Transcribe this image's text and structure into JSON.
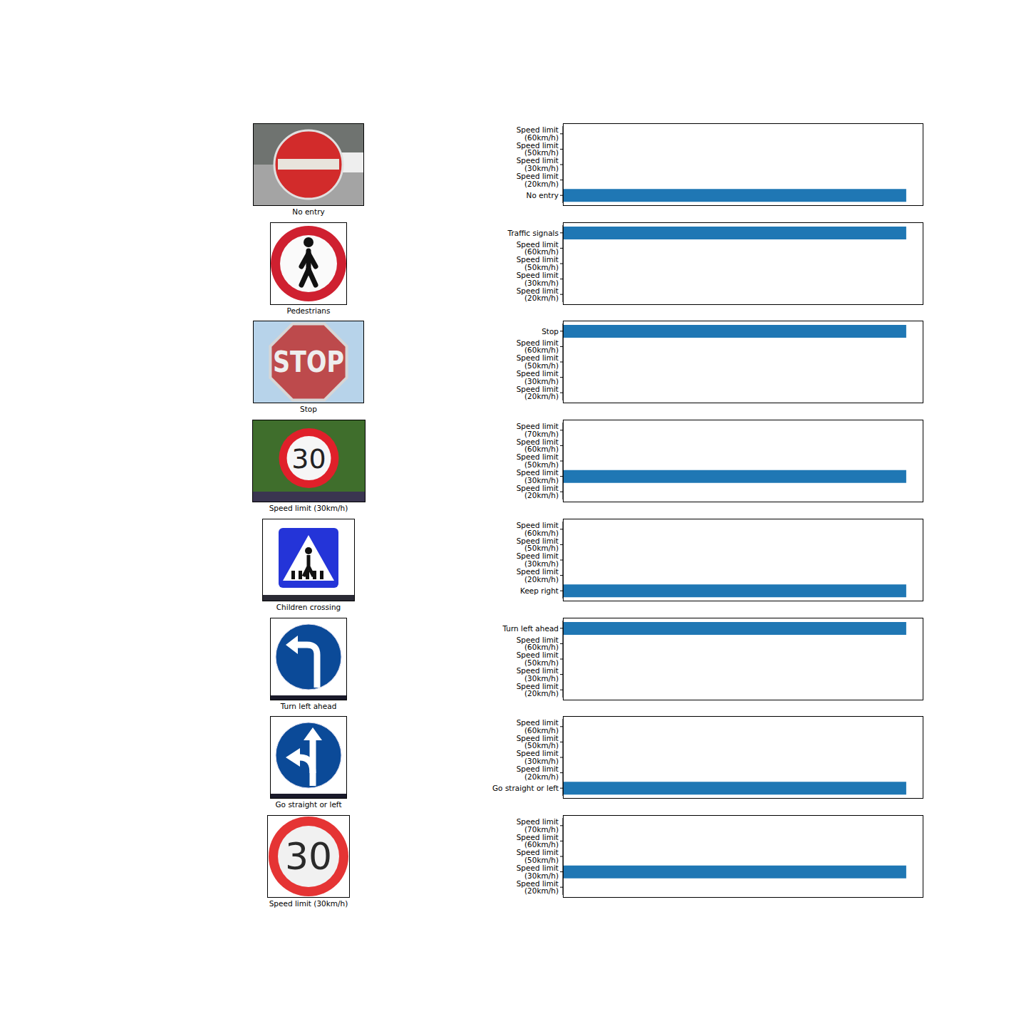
{
  "chart_data": [
    {
      "type": "bar",
      "orientation": "horizontal",
      "image_caption": "No entry",
      "categories": [
        "Speed limit (60km/h)",
        "Speed limit (50km/h)",
        "Speed limit (30km/h)",
        "Speed limit (20km/h)",
        "No entry"
      ],
      "values": [
        0,
        0,
        0,
        0,
        1
      ],
      "xlim": [
        0,
        1.05
      ],
      "tick_labels": "y",
      "color": "#1f77b4"
    },
    {
      "type": "bar",
      "orientation": "horizontal",
      "image_caption": "Pedestrians",
      "categories": [
        "Traffic signals",
        "Speed limit (60km/h)",
        "Speed limit (50km/h)",
        "Speed limit (30km/h)",
        "Speed limit (20km/h)"
      ],
      "values": [
        1,
        0,
        0,
        0,
        0
      ],
      "xlim": [
        0,
        1.05
      ],
      "tick_labels": "y",
      "color": "#1f77b4"
    },
    {
      "type": "bar",
      "orientation": "horizontal",
      "image_caption": "Stop",
      "image_text": "STOP",
      "categories": [
        "Stop",
        "Speed limit (60km/h)",
        "Speed limit (50km/h)",
        "Speed limit (30km/h)",
        "Speed limit (20km/h)"
      ],
      "values": [
        1,
        0,
        0,
        0,
        0
      ],
      "xlim": [
        0,
        1.05
      ],
      "tick_labels": "y",
      "color": "#1f77b4"
    },
    {
      "type": "bar",
      "orientation": "horizontal",
      "image_caption": "Speed limit (30km/h)",
      "image_text": "30",
      "categories": [
        "Speed limit (70km/h)",
        "Speed limit (60km/h)",
        "Speed limit (50km/h)",
        "Speed limit (30km/h)",
        "Speed limit (20km/h)"
      ],
      "values": [
        0,
        0,
        0,
        1,
        0
      ],
      "xlim": [
        0,
        1.05
      ],
      "tick_labels": "y",
      "color": "#1f77b4"
    },
    {
      "type": "bar",
      "orientation": "horizontal",
      "image_caption": "Children crossing",
      "categories": [
        "Speed limit (60km/h)",
        "Speed limit (50km/h)",
        "Speed limit (30km/h)",
        "Speed limit (20km/h)",
        "Keep right"
      ],
      "values": [
        0,
        0,
        0,
        0,
        1
      ],
      "xlim": [
        0,
        1.05
      ],
      "tick_labels": "y",
      "color": "#1f77b4"
    },
    {
      "type": "bar",
      "orientation": "horizontal",
      "image_caption": "Turn left ahead",
      "categories": [
        "Turn left ahead",
        "Speed limit (60km/h)",
        "Speed limit (50km/h)",
        "Speed limit (30km/h)",
        "Speed limit (20km/h)"
      ],
      "values": [
        1,
        0,
        0,
        0,
        0
      ],
      "xlim": [
        0,
        1.05
      ],
      "tick_labels": "y",
      "color": "#1f77b4"
    },
    {
      "type": "bar",
      "orientation": "horizontal",
      "image_caption": "Go straight or left",
      "categories": [
        "Speed limit (60km/h)",
        "Speed limit (50km/h)",
        "Speed limit (30km/h)",
        "Speed limit (20km/h)",
        "Go straight or left"
      ],
      "values": [
        0,
        0,
        0,
        0,
        1
      ],
      "xlim": [
        0,
        1.05
      ],
      "tick_labels": "y",
      "color": "#1f77b4"
    },
    {
      "type": "bar",
      "orientation": "horizontal",
      "image_caption": "Speed limit (30km/h)",
      "image_text": "30",
      "categories": [
        "Speed limit (70km/h)",
        "Speed limit (60km/h)",
        "Speed limit (50km/h)",
        "Speed limit (30km/h)",
        "Speed limit (20km/h)"
      ],
      "values": [
        0,
        0,
        0,
        1,
        0
      ],
      "xlim": [
        0,
        1.05
      ],
      "tick_labels": "y",
      "color": "#1f77b4"
    }
  ]
}
